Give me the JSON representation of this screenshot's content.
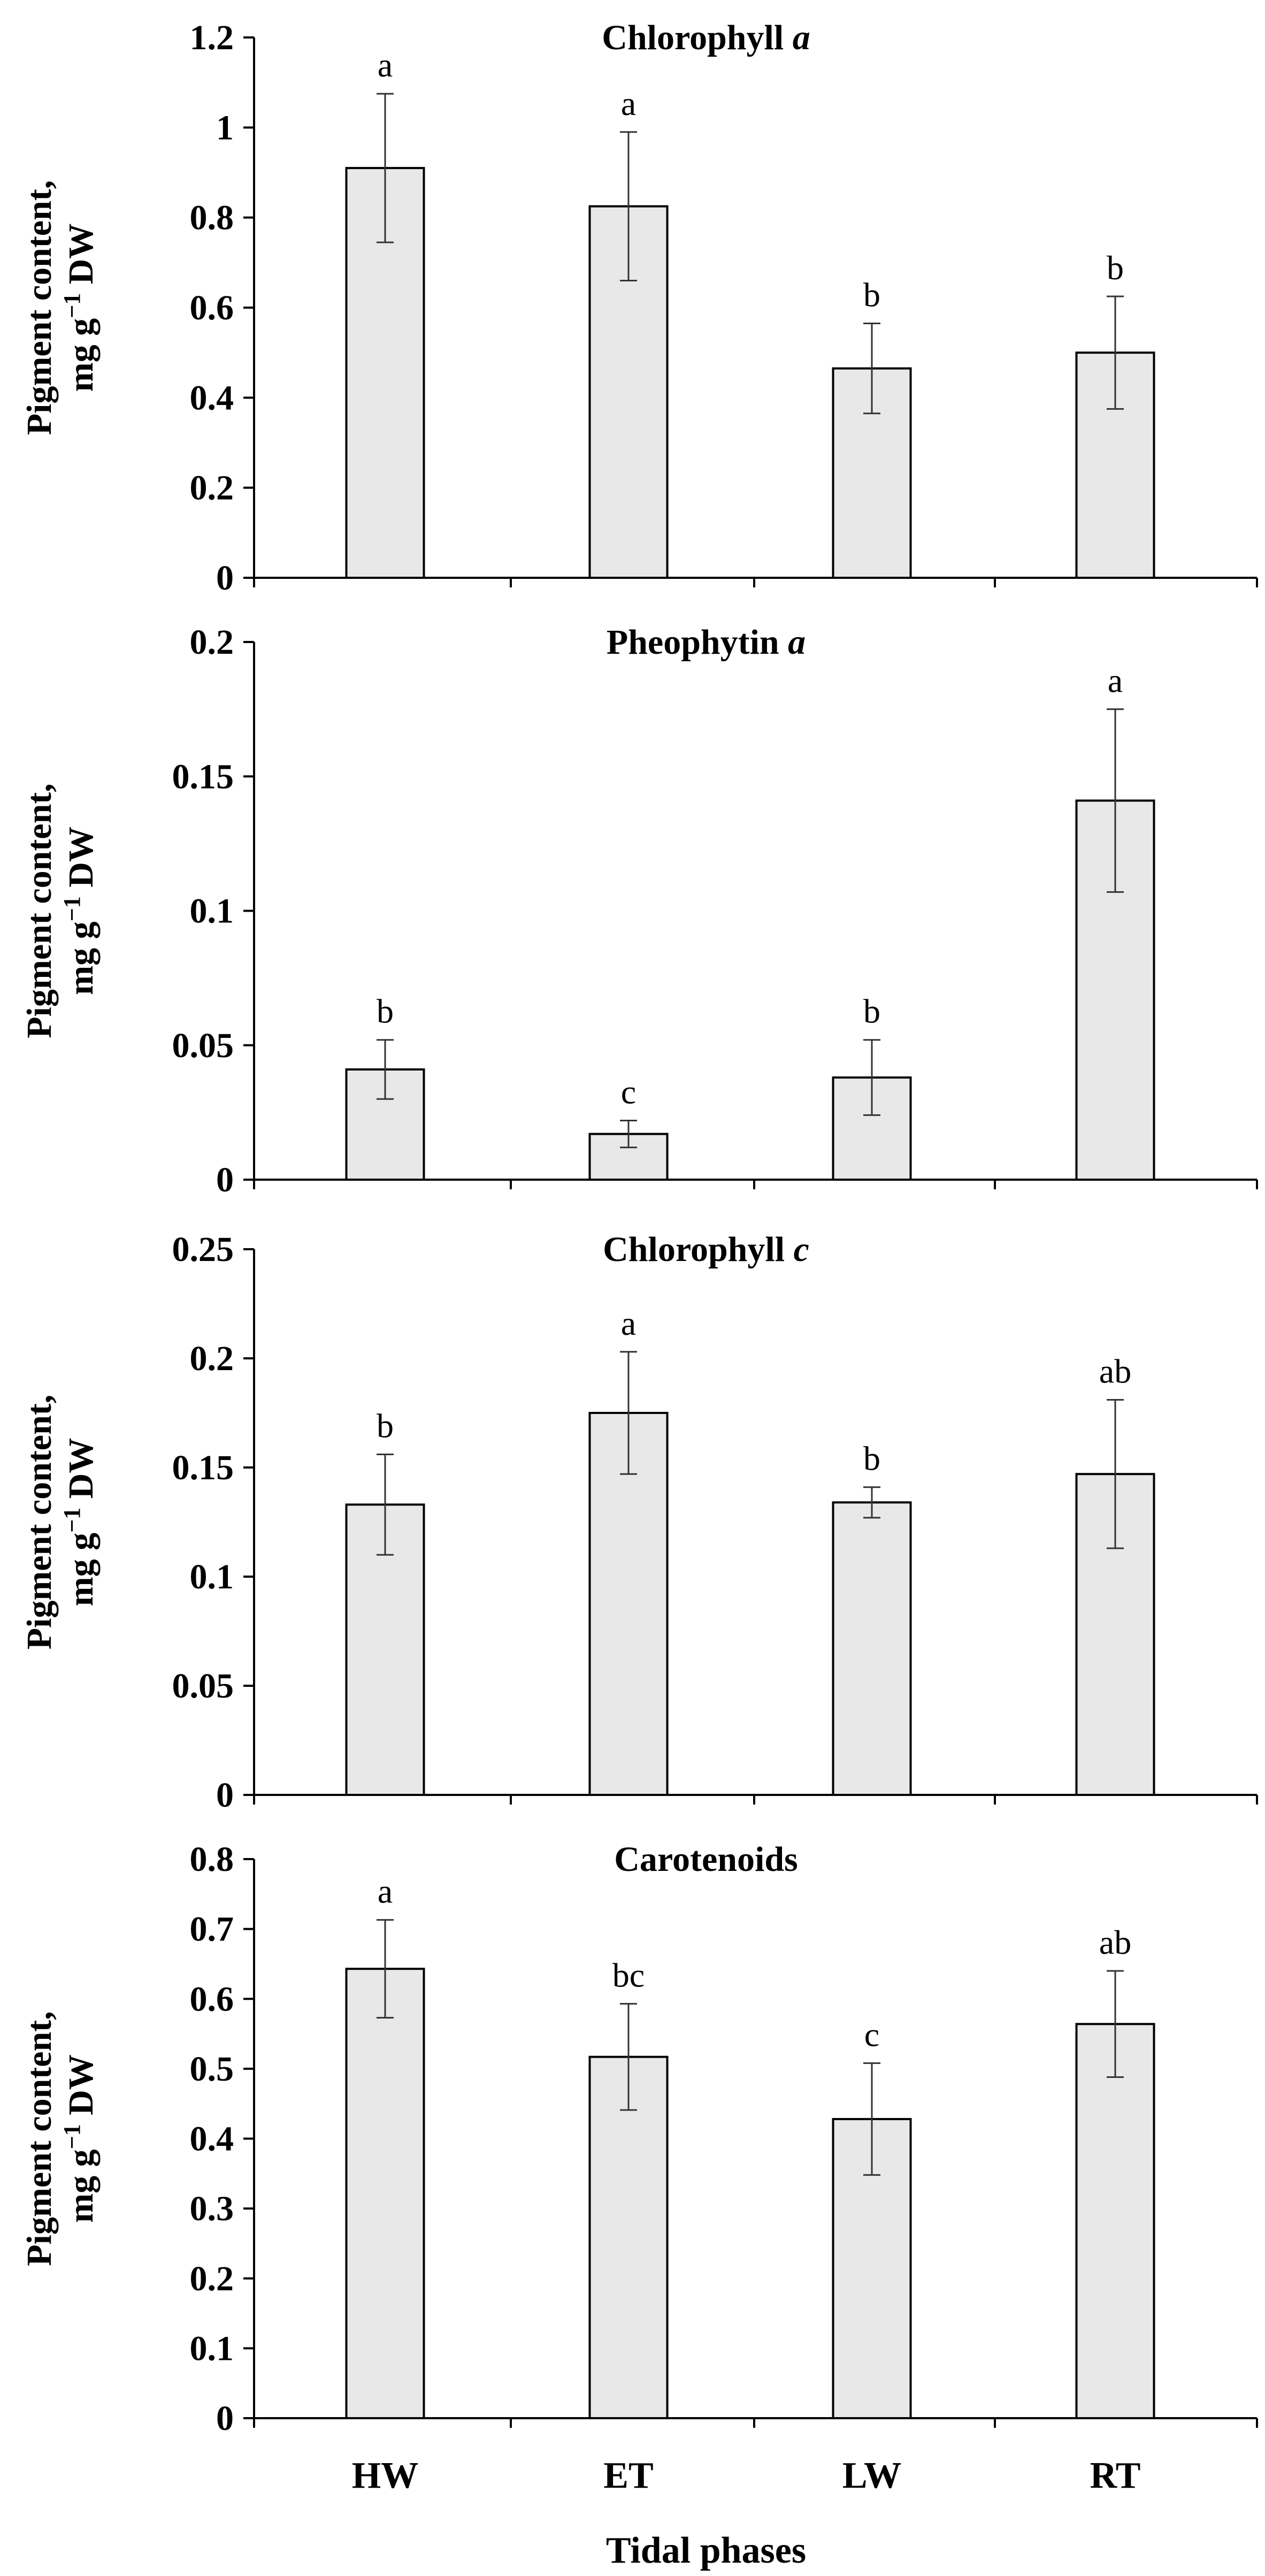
{
  "chart_data": [
    {
      "type": "bar",
      "title_main": "Chlorophyll ",
      "title_italic": "a",
      "ylabel_line1": "Pigment content,",
      "ylabel_line2_prefix": "mg g",
      "ylabel_superscript": "−1",
      "ylabel_line2_suffix": " DW",
      "categories": [
        "HW",
        "ET",
        "LW",
        "RT"
      ],
      "values": [
        0.91,
        0.825,
        0.465,
        0.5
      ],
      "errors": [
        0.165,
        0.165,
        0.1,
        0.125
      ],
      "significance": [
        "a",
        "a",
        "b",
        "b"
      ],
      "ylim": [
        0,
        1.2
      ],
      "yticks": [
        0,
        0.2,
        0.4,
        0.6,
        0.8,
        1,
        1.2
      ],
      "ytick_labels": [
        "0",
        "0.2",
        "0.4",
        "0.6",
        "0.8",
        "1",
        "1.2"
      ],
      "bar_color": "#e8e8e8"
    },
    {
      "type": "bar",
      "title_main": "Pheophytin ",
      "title_italic": "a",
      "ylabel_line1": "Pigment content,",
      "ylabel_line2_prefix": "mg g",
      "ylabel_superscript": "−1",
      "ylabel_line2_suffix": " DW",
      "categories": [
        "HW",
        "ET",
        "LW",
        "RT"
      ],
      "values": [
        0.041,
        0.017,
        0.038,
        0.141
      ],
      "errors": [
        0.011,
        0.005,
        0.014,
        0.034
      ],
      "significance": [
        "b",
        "c",
        "b",
        "a"
      ],
      "ylim": [
        0,
        0.2
      ],
      "yticks": [
        0,
        0.05,
        0.1,
        0.15,
        0.2
      ],
      "ytick_labels": [
        "0",
        "0.05",
        "0.1",
        "0.15",
        "0.2"
      ],
      "bar_color": "#e8e8e8"
    },
    {
      "type": "bar",
      "title_main": "Chlorophyll ",
      "title_italic": "c",
      "ylabel_line1": "Pigment content,",
      "ylabel_line2_prefix": "mg g",
      "ylabel_superscript": "−1",
      "ylabel_line2_suffix": " DW",
      "categories": [
        "HW",
        "ET",
        "LW",
        "RT"
      ],
      "values": [
        0.133,
        0.175,
        0.134,
        0.147
      ],
      "errors": [
        0.023,
        0.028,
        0.007,
        0.034
      ],
      "significance": [
        "b",
        "a",
        "b",
        "ab"
      ],
      "ylim": [
        0,
        0.25
      ],
      "yticks": [
        0,
        0.05,
        0.1,
        0.15,
        0.2,
        0.25
      ],
      "ytick_labels": [
        "0",
        "0.05",
        "0.1",
        "0.15",
        "0.2",
        "0.25"
      ],
      "bar_color": "#e8e8e8"
    },
    {
      "type": "bar",
      "title_main": "Carotenoids",
      "title_italic": "",
      "ylabel_line1": "Pigment content,",
      "ylabel_line2_prefix": "mg g",
      "ylabel_superscript": "−1",
      "ylabel_line2_suffix": " DW",
      "categories": [
        "HW",
        "ET",
        "LW",
        "RT"
      ],
      "values": [
        0.643,
        0.517,
        0.428,
        0.564
      ],
      "errors": [
        0.07,
        0.076,
        0.08,
        0.076
      ],
      "significance": [
        "a",
        "bc",
        "c",
        "ab"
      ],
      "ylim": [
        0,
        0.8
      ],
      "yticks": [
        0,
        0.1,
        0.2,
        0.3,
        0.4,
        0.5,
        0.6,
        0.7,
        0.8
      ],
      "ytick_labels": [
        "0",
        "0.1",
        "0.2",
        "0.3",
        "0.4",
        "0.5",
        "0.6",
        "0.7",
        "0.8"
      ],
      "bar_color": "#e8e8e8"
    }
  ],
  "xlabel": "Tidal phases",
  "x_categories": [
    "HW",
    "ET",
    "LW",
    "RT"
  ]
}
